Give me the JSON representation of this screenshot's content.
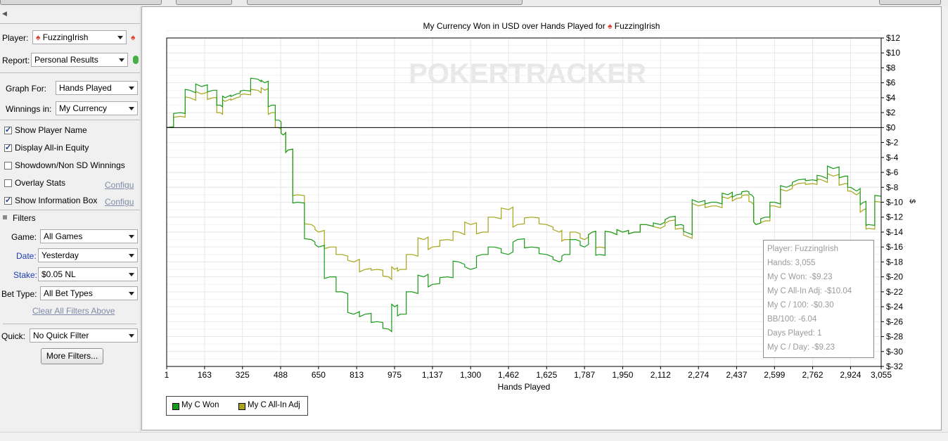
{
  "sidebar": {
    "player_label": "Player:",
    "player_value": "FuzzingIrish",
    "report_label": "Report:",
    "report_value": "Personal Results",
    "graph_for_label": "Graph For:",
    "graph_for_value": "Hands Played",
    "winnings_label": "Winnings in:",
    "winnings_value": "My Currency",
    "checkboxes": [
      {
        "label": "Show Player Name",
        "checked": true
      },
      {
        "label": "Display All-in Equity",
        "checked": true
      },
      {
        "label": "Showdown/Non SD Winnings",
        "checked": false
      },
      {
        "label": "Overlay Stats",
        "checked": false
      },
      {
        "label": "Show Information Box",
        "checked": true
      }
    ],
    "configure_link": "Configu",
    "filters_header": "Filters",
    "game_label": "Game:",
    "game_value": "All Games",
    "date_label": "Date:",
    "date_value": "Yesterday",
    "stake_label": "Stake:",
    "stake_value": "$0.05 NL",
    "bettype_label": "Bet Type:",
    "bettype_value": "All Bet Types",
    "clear_filters": "Clear All Filters Above",
    "quick_label": "Quick:",
    "quick_value": "No Quick Filter",
    "more_filters": "More Filters..."
  },
  "chart": {
    "title": "My Currency Won in USD over Hands Played for",
    "title_player": "FuzzingIrish",
    "watermark": "POKERTRACKER",
    "right_axis_unit": "$"
  },
  "tooltip": {
    "lines": [
      "Player: FuzzingIrish",
      "Hands: 3,055",
      "My C Won: -$9.23",
      "My C All-In Adj: -$10.04",
      "My C / 100: -$0.30",
      "BB/100: -6.04",
      "Days Played: 1",
      "My C / Day: -$9.23"
    ]
  },
  "colors": {
    "won": "#1a9a1a",
    "allin": "#a6a61a"
  },
  "chart_data": {
    "type": "line",
    "title": "My Currency Won in USD over Hands Played for FuzzingIrish",
    "xlabel": "Hands Played",
    "ylabel": "$",
    "xlim": [
      1,
      3055
    ],
    "ylim": [
      -32,
      12
    ],
    "x_ticks": [
      "1",
      "163",
      "325",
      "488",
      "650",
      "813",
      "975",
      "1,137",
      "1,300",
      "1,462",
      "1,625",
      "1,787",
      "1,950",
      "2,112",
      "2,274",
      "2,437",
      "2,599",
      "2,762",
      "2,924",
      "3,055"
    ],
    "y_ticks": [
      "$12",
      "$10",
      "$8",
      "$6",
      "$4",
      "$2",
      "$0",
      "$-2",
      "$-4",
      "$-6",
      "$-8",
      "$-10",
      "$-12",
      "$-14",
      "$-16",
      "$-18",
      "$-20",
      "$-22",
      "$-24",
      "$-26",
      "$-28",
      "$-30",
      "$-32"
    ],
    "legend_position": "bottom-left",
    "series": [
      {
        "name": "My C Won",
        "x": [
          1,
          60,
          100,
          150,
          200,
          230,
          250,
          300,
          330,
          390,
          420,
          450,
          480,
          500,
          520,
          560,
          620,
          650,
          700,
          750,
          800,
          850,
          900,
          950,
          975,
          1000,
          1050,
          1100,
          1137,
          1200,
          1250,
          1300,
          1350,
          1400,
          1462,
          1500,
          1560,
          1625,
          1680,
          1700,
          1750,
          1787,
          1820,
          1850,
          1900,
          1950,
          2000,
          2050,
          2112,
          2150,
          2200,
          2220,
          2274,
          2330,
          2350,
          2400,
          2437,
          2480,
          2500,
          2520,
          2560,
          2599,
          2650,
          2700,
          2762,
          2800,
          2850,
          2900,
          2924,
          2950,
          2980,
          3000,
          3055
        ],
        "y": [
          0,
          2,
          5,
          5.5,
          5,
          3,
          4,
          4.5,
          5,
          6.5,
          6,
          3,
          1,
          -1,
          -3,
          -10,
          -15,
          -16,
          -20,
          -22,
          -25,
          -25,
          -26,
          -27,
          -24,
          -25,
          -22,
          -20,
          -21,
          -20,
          -18,
          -19,
          -17,
          -16,
          -17,
          -15,
          -16,
          -17,
          -18,
          -17,
          -15,
          -16,
          -14,
          -17,
          -14,
          -14,
          -14,
          -13,
          -13,
          -12,
          -13,
          -14,
          -10,
          -10,
          -10,
          -9,
          -9,
          -8.5,
          -9,
          -13,
          -12,
          -10,
          -8,
          -7,
          -7,
          -6.5,
          -5.5,
          -6.5,
          -8,
          -8.5,
          -10,
          -13,
          -9.2
        ]
      },
      {
        "name": "My C All-In Adj",
        "x": [
          1,
          60,
          100,
          150,
          200,
          230,
          250,
          300,
          330,
          390,
          420,
          450,
          480,
          500,
          520,
          560,
          620,
          650,
          700,
          750,
          800,
          850,
          900,
          950,
          975,
          1000,
          1050,
          1100,
          1137,
          1200,
          1250,
          1300,
          1350,
          1400,
          1462,
          1500,
          1560,
          1625,
          1680,
          1700,
          1750,
          1787,
          1820,
          1850,
          1900,
          1950,
          2000,
          2050,
          2112,
          2150,
          2200,
          2220,
          2274,
          2330,
          2350,
          2400,
          2437,
          2480,
          2500,
          2520,
          2560,
          2599,
          2650,
          2700,
          2762,
          2800,
          2850,
          2900,
          2924,
          2950,
          2980,
          3000,
          3055
        ],
        "y": [
          0,
          1.5,
          4,
          4.5,
          4,
          2,
          3.5,
          4,
          4.5,
          5,
          5,
          2,
          0,
          -1,
          -3,
          -9,
          -13,
          -14,
          -16,
          -17,
          -18,
          -19,
          -19,
          -20,
          -19,
          -19,
          -17,
          -15,
          -16,
          -15,
          -14,
          -13,
          -14,
          -12,
          -11,
          -13,
          -12,
          -13,
          -14,
          -15,
          -14,
          -15,
          -14,
          -16,
          -14,
          -14,
          -14,
          -13,
          -13.5,
          -12.5,
          -13.5,
          -14.5,
          -10.5,
          -10.5,
          -10.5,
          -9.5,
          -9.5,
          -9,
          -10,
          -13,
          -12.5,
          -10.5,
          -8.5,
          -7.5,
          -7.5,
          -7,
          -6.5,
          -7.5,
          -8.5,
          -9,
          -11,
          -13.5,
          -10
        ]
      }
    ]
  }
}
